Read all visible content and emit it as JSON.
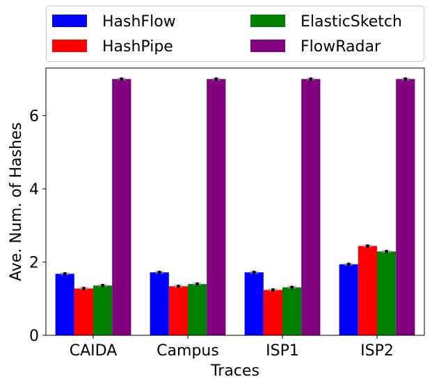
{
  "chart_data": {
    "type": "bar",
    "xlabel": "Traces",
    "ylabel": "Ave. Num. of Hashes",
    "categories": [
      "CAIDA",
      "Campus",
      "ISP1",
      "ISP2"
    ],
    "ylim": [
      0,
      7.3
    ],
    "yticks": [
      0,
      2,
      4,
      6
    ],
    "ytick_labels": [
      "0",
      "2",
      "4",
      "6"
    ],
    "grid": false,
    "legend_placement": "top, outside plot, two columns",
    "error_bars": true,
    "series": [
      {
        "name": "HashFlow",
        "color": "#0000ff",
        "values": [
          1.68,
          1.72,
          1.72,
          1.94
        ]
      },
      {
        "name": "HashPipe",
        "color": "#ff0000",
        "values": [
          1.28,
          1.34,
          1.24,
          2.44
        ]
      },
      {
        "name": "ElasticSketch",
        "color": "#008000",
        "values": [
          1.36,
          1.4,
          1.31,
          2.29
        ]
      },
      {
        "name": "FlowRadar",
        "color": "#800080",
        "values": [
          7.0,
          7.0,
          7.0,
          7.0
        ]
      }
    ]
  }
}
